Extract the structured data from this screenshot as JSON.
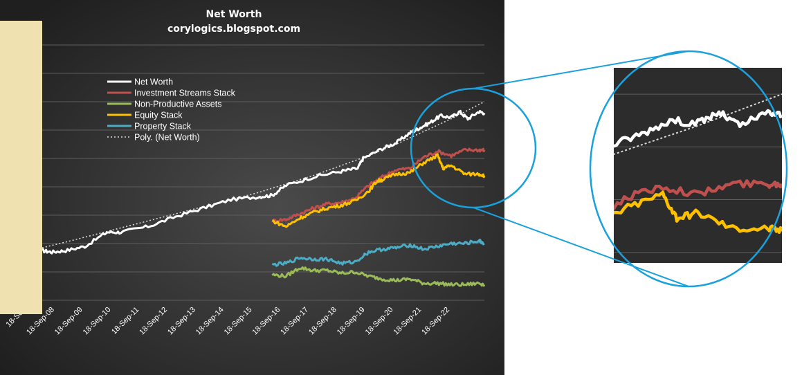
{
  "chart_data": {
    "type": "line",
    "title": "Net Worth",
    "subtitle": "corylogics.blogspot.com",
    "x_tick_labels": [
      "18-Sep",
      "18-Sep-08",
      "18-Sep-09",
      "18-Sep-10",
      "18-Sep-11",
      "18-Sep-12",
      "18-Sep-13",
      "18-Sep-14",
      "18-Sep-15",
      "18-Sep-16",
      "18-Sep-17",
      "18-Sep-18",
      "18-Sep-19",
      "18-Sep-20",
      "18-Sep-21",
      "18-Sep-22"
    ],
    "x_range": [
      2007.15,
      2023.2
    ],
    "y_axis_labels_visible": false,
    "y_gridlines": 9,
    "grid": true,
    "legend_position": "top-left",
    "series": [
      {
        "name": "Net Worth",
        "color": "#ffffff",
        "dash": "solid",
        "x": [
          2007.15,
          2007.5,
          2008.0,
          2008.7,
          2009.5,
          2010.0,
          2011.0,
          2012.0,
          2013.0,
          2014.0,
          2015.0,
          2015.5,
          2016.0,
          2017.0,
          2018.0,
          2018.6,
          2018.8,
          2019.5,
          2020.0,
          2020.5,
          2020.8,
          2021.2,
          2021.6,
          2022.0,
          2022.3,
          2022.6,
          2023.0,
          2023.2
        ],
        "y": [
          1.75,
          1.7,
          1.75,
          1.9,
          2.4,
          2.4,
          2.6,
          2.95,
          3.25,
          3.55,
          3.65,
          3.7,
          4.05,
          4.35,
          4.55,
          4.65,
          5.0,
          5.35,
          5.55,
          5.9,
          6.05,
          6.25,
          6.5,
          6.45,
          6.65,
          6.4,
          6.65,
          6.6
        ]
      },
      {
        "name": "Investment Streams Stack",
        "color": "#c0504d",
        "dash": "solid",
        "x": [
          2015.5,
          2016.0,
          2016.5,
          2017.0,
          2017.5,
          2018.0,
          2018.5,
          2019.0,
          2019.5,
          2020.0,
          2020.5,
          2021.0,
          2021.5,
          2022.0,
          2022.5,
          2023.0,
          2023.2
        ],
        "y": [
          2.8,
          2.85,
          3.05,
          3.25,
          3.4,
          3.45,
          3.6,
          4.05,
          4.35,
          4.6,
          4.65,
          5.05,
          5.25,
          5.1,
          5.3,
          5.3,
          5.3
        ]
      },
      {
        "name": "Non-Productive Assets",
        "color": "#9bbb59",
        "dash": "solid",
        "x": [
          2015.5,
          2016.0,
          2016.5,
          2017.0,
          2017.5,
          2018.0,
          2018.5,
          2019.0,
          2019.5,
          2020.0,
          2020.5,
          2021.0,
          2021.5,
          2022.0,
          2022.5,
          2023.0,
          2023.2
        ],
        "y": [
          0.9,
          0.85,
          1.15,
          1.05,
          1.05,
          0.95,
          1.0,
          0.85,
          0.75,
          0.7,
          0.75,
          0.6,
          0.6,
          0.55,
          0.55,
          0.6,
          0.55
        ]
      },
      {
        "name": "Equity Stack",
        "color": "#ffc000",
        "dash": "solid",
        "x": [
          2015.5,
          2016.0,
          2016.5,
          2017.0,
          2017.5,
          2018.0,
          2018.5,
          2019.0,
          2019.3,
          2019.5,
          2020.0,
          2020.5,
          2021.0,
          2021.5,
          2021.7,
          2022.0,
          2022.5,
          2023.0,
          2023.2
        ],
        "y": [
          2.8,
          2.6,
          2.9,
          3.1,
          3.25,
          3.35,
          3.5,
          3.85,
          4.2,
          4.25,
          4.45,
          4.5,
          4.85,
          5.1,
          4.65,
          4.75,
          4.45,
          4.45,
          4.4
        ]
      },
      {
        "name": "Property Stack",
        "color": "#4bacc6",
        "dash": "solid",
        "x": [
          2015.5,
          2016.0,
          2016.5,
          2017.0,
          2017.5,
          2018.0,
          2018.5,
          2019.0,
          2019.5,
          2020.0,
          2020.5,
          2021.0,
          2021.5,
          2022.0,
          2022.5,
          2023.0,
          2023.2
        ],
        "y": [
          1.25,
          1.3,
          1.5,
          1.45,
          1.45,
          1.3,
          1.35,
          1.7,
          1.8,
          1.85,
          1.95,
          1.8,
          1.9,
          2.0,
          2.0,
          2.1,
          2.0
        ]
      },
      {
        "name": "Poly. (Net Worth)",
        "color": "#d9d9d9",
        "dash": "dotted",
        "x": [
          2007.15,
          2008.0,
          2009.0,
          2010.0,
          2011.0,
          2012.0,
          2013.0,
          2014.0,
          2015.0,
          2016.0,
          2017.0,
          2018.0,
          2019.0,
          2020.0,
          2021.0,
          2022.0,
          2023.2
        ],
        "y": [
          1.85,
          2.05,
          2.3,
          2.55,
          2.8,
          3.05,
          3.3,
          3.55,
          3.8,
          4.1,
          4.4,
          4.75,
          5.1,
          5.5,
          5.95,
          6.4,
          7.0
        ]
      }
    ]
  },
  "zoom": {
    "x_range": [
      2020.8,
      2023.2
    ],
    "y_range": [
      3.8,
      7.5
    ]
  }
}
